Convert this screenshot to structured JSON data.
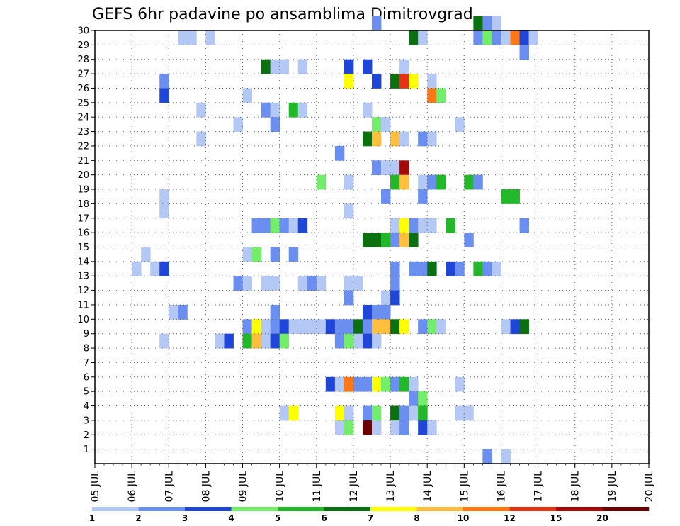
{
  "chart_data": {
    "type": "heatmap",
    "title": "GEFS 6hr padavine po ansamblima Dimitrovgrad",
    "xlabel": "",
    "ylabel": "",
    "x_ticks": [
      "05 JUL",
      "06 JUL",
      "07 JUL",
      "08 JUL",
      "09 JUL",
      "10 JUL",
      "11 JUL",
      "12 JUL",
      "13 JUL",
      "14 JUL",
      "15 JUL",
      "16 JUL",
      "17 JUL",
      "18 JUL",
      "19 JUL",
      "20 JUL"
    ],
    "x_range_days": [
      0,
      15
    ],
    "time_step_hours": 6,
    "y_ticks": [
      "1",
      "2",
      "3",
      "4",
      "5",
      "6",
      "7",
      "8",
      "9",
      "10",
      "11",
      "12",
      "13",
      "14",
      "15",
      "16",
      "17",
      "18",
      "19",
      "20",
      "21",
      "22",
      "23",
      "24",
      "25",
      "26",
      "27",
      "28",
      "29",
      "30"
    ],
    "y_range": [
      0,
      30
    ],
    "grid": true,
    "colorbar": {
      "labels": [
        "1",
        "2",
        "3",
        "4",
        "5",
        "6",
        "7",
        "8",
        "10",
        "12",
        "15",
        "20"
      ],
      "colors": [
        "#b4c8f5",
        "#6b8ff0",
        "#1f46d8",
        "#73ee6a",
        "#22b82a",
        "#0b7010",
        "#ffff00",
        "#ffbe3c",
        "#ff7814",
        "#e63214",
        "#a50a0a",
        "#6a0404"
      ]
    },
    "cells": [
      {
        "member": 30,
        "step": 41,
        "level": 6
      },
      {
        "member": 30,
        "step": 42,
        "level": 2
      },
      {
        "member": 30,
        "step": 43,
        "level": 1
      },
      {
        "member": 30,
        "step": 30,
        "level": 2
      },
      {
        "member": 29,
        "step": 9,
        "level": 1
      },
      {
        "member": 29,
        "step": 10,
        "level": 1
      },
      {
        "member": 29,
        "step": 12,
        "level": 1
      },
      {
        "member": 29,
        "step": 34,
        "level": 6
      },
      {
        "member": 29,
        "step": 35,
        "level": 1
      },
      {
        "member": 29,
        "step": 41,
        "level": 2
      },
      {
        "member": 29,
        "step": 42,
        "level": 4
      },
      {
        "member": 29,
        "step": 43,
        "level": 2
      },
      {
        "member": 29,
        "step": 44,
        "level": 1
      },
      {
        "member": 29,
        "step": 45,
        "level": 9
      },
      {
        "member": 29,
        "step": 46,
        "level": 3
      },
      {
        "member": 29,
        "step": 47,
        "level": 1
      },
      {
        "member": 28,
        "step": 46,
        "level": 2
      },
      {
        "member": 27,
        "step": 18,
        "level": 6
      },
      {
        "member": 27,
        "step": 19,
        "level": 1
      },
      {
        "member": 27,
        "step": 20,
        "level": 1
      },
      {
        "member": 27,
        "step": 22,
        "level": 1
      },
      {
        "member": 27,
        "step": 27,
        "level": 3
      },
      {
        "member": 27,
        "step": 29,
        "level": 3
      },
      {
        "member": 27,
        "step": 33,
        "level": 1
      },
      {
        "member": 26,
        "step": 7,
        "level": 2
      },
      {
        "member": 26,
        "step": 27,
        "level": 7
      },
      {
        "member": 26,
        "step": 30,
        "level": 3
      },
      {
        "member": 26,
        "step": 32,
        "level": 6
      },
      {
        "member": 26,
        "step": 33,
        "level": 10
      },
      {
        "member": 26,
        "step": 34,
        "level": 7
      },
      {
        "member": 26,
        "step": 36,
        "level": 1
      },
      {
        "member": 25,
        "step": 7,
        "level": 3
      },
      {
        "member": 25,
        "step": 16,
        "level": 1
      },
      {
        "member": 25,
        "step": 36,
        "level": 9
      },
      {
        "member": 25,
        "step": 37,
        "level": 4
      },
      {
        "member": 24,
        "step": 11,
        "level": 1
      },
      {
        "member": 24,
        "step": 18,
        "level": 2
      },
      {
        "member": 24,
        "step": 19,
        "level": 1
      },
      {
        "member": 24,
        "step": 21,
        "level": 5
      },
      {
        "member": 24,
        "step": 22,
        "level": 1
      },
      {
        "member": 24,
        "step": 29,
        "level": 1
      },
      {
        "member": 23,
        "step": 15,
        "level": 1
      },
      {
        "member": 23,
        "step": 19,
        "level": 2
      },
      {
        "member": 23,
        "step": 30,
        "level": 4
      },
      {
        "member": 23,
        "step": 31,
        "level": 1
      },
      {
        "member": 23,
        "step": 39,
        "level": 1
      },
      {
        "member": 22,
        "step": 11,
        "level": 1
      },
      {
        "member": 22,
        "step": 29,
        "level": 6
      },
      {
        "member": 22,
        "step": 30,
        "level": 8
      },
      {
        "member": 22,
        "step": 32,
        "level": 8
      },
      {
        "member": 22,
        "step": 33,
        "level": 1
      },
      {
        "member": 22,
        "step": 35,
        "level": 2
      },
      {
        "member": 22,
        "step": 36,
        "level": 1
      },
      {
        "member": 21,
        "step": 26,
        "level": 2
      },
      {
        "member": 20,
        "step": 30,
        "level": 2
      },
      {
        "member": 20,
        "step": 31,
        "level": 1
      },
      {
        "member": 20,
        "step": 32,
        "level": 1
      },
      {
        "member": 20,
        "step": 33,
        "level": 11
      },
      {
        "member": 19,
        "step": 24,
        "level": 4
      },
      {
        "member": 19,
        "step": 27,
        "level": 1
      },
      {
        "member": 19,
        "step": 32,
        "level": 5
      },
      {
        "member": 19,
        "step": 33,
        "level": 8
      },
      {
        "member": 19,
        "step": 35,
        "level": 1
      },
      {
        "member": 19,
        "step": 36,
        "level": 2
      },
      {
        "member": 19,
        "step": 37,
        "level": 5
      },
      {
        "member": 19,
        "step": 40,
        "level": 5
      },
      {
        "member": 19,
        "step": 41,
        "level": 2
      },
      {
        "member": 18,
        "step": 7,
        "level": 1
      },
      {
        "member": 18,
        "step": 31,
        "level": 2
      },
      {
        "member": 18,
        "step": 35,
        "level": 2
      },
      {
        "member": 18,
        "step": 44,
        "level": 5
      },
      {
        "member": 18,
        "step": 45,
        "level": 5
      },
      {
        "member": 17,
        "step": 7,
        "level": 1
      },
      {
        "member": 17,
        "step": 27,
        "level": 1
      },
      {
        "member": 16,
        "step": 17,
        "level": 2
      },
      {
        "member": 16,
        "step": 18,
        "level": 2
      },
      {
        "member": 16,
        "step": 19,
        "level": 4
      },
      {
        "member": 16,
        "step": 20,
        "level": 2
      },
      {
        "member": 16,
        "step": 21,
        "level": 1
      },
      {
        "member": 16,
        "step": 22,
        "level": 3
      },
      {
        "member": 16,
        "step": 32,
        "level": 1
      },
      {
        "member": 16,
        "step": 33,
        "level": 7
      },
      {
        "member": 16,
        "step": 34,
        "level": 2
      },
      {
        "member": 16,
        "step": 35,
        "level": 1
      },
      {
        "member": 16,
        "step": 36,
        "level": 1
      },
      {
        "member": 16,
        "step": 38,
        "level": 5
      },
      {
        "member": 16,
        "step": 46,
        "level": 2
      },
      {
        "member": 15,
        "step": 29,
        "level": 6
      },
      {
        "member": 15,
        "step": 30,
        "level": 6
      },
      {
        "member": 15,
        "step": 31,
        "level": 5
      },
      {
        "member": 15,
        "step": 32,
        "level": 2
      },
      {
        "member": 15,
        "step": 33,
        "level": 8
      },
      {
        "member": 15,
        "step": 34,
        "level": 6
      },
      {
        "member": 15,
        "step": 40,
        "level": 2
      },
      {
        "member": 14,
        "step": 5,
        "level": 1
      },
      {
        "member": 14,
        "step": 16,
        "level": 1
      },
      {
        "member": 14,
        "step": 17,
        "level": 4
      },
      {
        "member": 14,
        "step": 19,
        "level": 2
      },
      {
        "member": 14,
        "step": 21,
        "level": 2
      },
      {
        "member": 13,
        "step": 4,
        "level": 1
      },
      {
        "member": 13,
        "step": 6,
        "level": 1
      },
      {
        "member": 13,
        "step": 7,
        "level": 3
      },
      {
        "member": 13,
        "step": 32,
        "level": 2
      },
      {
        "member": 13,
        "step": 34,
        "level": 2
      },
      {
        "member": 13,
        "step": 35,
        "level": 2
      },
      {
        "member": 13,
        "step": 36,
        "level": 6
      },
      {
        "member": 13,
        "step": 38,
        "level": 3
      },
      {
        "member": 13,
        "step": 39,
        "level": 2
      },
      {
        "member": 13,
        "step": 41,
        "level": 5
      },
      {
        "member": 13,
        "step": 42,
        "level": 2
      },
      {
        "member": 13,
        "step": 43,
        "level": 1
      },
      {
        "member": 12,
        "step": 15,
        "level": 2
      },
      {
        "member": 12,
        "step": 16,
        "level": 1
      },
      {
        "member": 12,
        "step": 18,
        "level": 1
      },
      {
        "member": 12,
        "step": 19,
        "level": 1
      },
      {
        "member": 12,
        "step": 22,
        "level": 1
      },
      {
        "member": 12,
        "step": 23,
        "level": 2
      },
      {
        "member": 12,
        "step": 24,
        "level": 1
      },
      {
        "member": 12,
        "step": 27,
        "level": 1
      },
      {
        "member": 12,
        "step": 28,
        "level": 1
      },
      {
        "member": 12,
        "step": 32,
        "level": 2
      },
      {
        "member": 11,
        "step": 27,
        "level": 2
      },
      {
        "member": 11,
        "step": 31,
        "level": 1
      },
      {
        "member": 11,
        "step": 32,
        "level": 3
      },
      {
        "member": 10,
        "step": 8,
        "level": 1
      },
      {
        "member": 10,
        "step": 9,
        "level": 2
      },
      {
        "member": 10,
        "step": 19,
        "level": 2
      },
      {
        "member": 10,
        "step": 29,
        "level": 3
      },
      {
        "member": 10,
        "step": 30,
        "level": 2
      },
      {
        "member": 10,
        "step": 31,
        "level": 2
      },
      {
        "member": 9,
        "step": 16,
        "level": 2
      },
      {
        "member": 9,
        "step": 17,
        "level": 7
      },
      {
        "member": 9,
        "step": 18,
        "level": 1
      },
      {
        "member": 9,
        "step": 19,
        "level": 2
      },
      {
        "member": 9,
        "step": 20,
        "level": 3
      },
      {
        "member": 9,
        "step": 21,
        "level": 1
      },
      {
        "member": 9,
        "step": 22,
        "level": 1
      },
      {
        "member": 9,
        "step": 23,
        "level": 1
      },
      {
        "member": 9,
        "step": 24,
        "level": 1
      },
      {
        "member": 9,
        "step": 25,
        "level": 3
      },
      {
        "member": 9,
        "step": 26,
        "level": 2
      },
      {
        "member": 9,
        "step": 27,
        "level": 2
      },
      {
        "member": 9,
        "step": 28,
        "level": 6
      },
      {
        "member": 9,
        "step": 29,
        "level": 2
      },
      {
        "member": 9,
        "step": 30,
        "level": 8
      },
      {
        "member": 9,
        "step": 31,
        "level": 8
      },
      {
        "member": 9,
        "step": 32,
        "level": 6
      },
      {
        "member": 9,
        "step": 33,
        "level": 7
      },
      {
        "member": 9,
        "step": 35,
        "level": 2
      },
      {
        "member": 9,
        "step": 36,
        "level": 4
      },
      {
        "member": 9,
        "step": 37,
        "level": 1
      },
      {
        "member": 9,
        "step": 44,
        "level": 1
      },
      {
        "member": 9,
        "step": 45,
        "level": 3
      },
      {
        "member": 9,
        "step": 46,
        "level": 6
      },
      {
        "member": 8,
        "step": 7,
        "level": 1
      },
      {
        "member": 8,
        "step": 13,
        "level": 1
      },
      {
        "member": 8,
        "step": 14,
        "level": 3
      },
      {
        "member": 8,
        "step": 16,
        "level": 5
      },
      {
        "member": 8,
        "step": 17,
        "level": 8
      },
      {
        "member": 8,
        "step": 18,
        "level": 1
      },
      {
        "member": 8,
        "step": 19,
        "level": 3
      },
      {
        "member": 8,
        "step": 20,
        "level": 4
      },
      {
        "member": 8,
        "step": 26,
        "level": 2
      },
      {
        "member": 8,
        "step": 27,
        "level": 4
      },
      {
        "member": 8,
        "step": 28,
        "level": 1
      },
      {
        "member": 8,
        "step": 29,
        "level": 3
      },
      {
        "member": 8,
        "step": 30,
        "level": 1
      },
      {
        "member": 5,
        "step": 25,
        "level": 3
      },
      {
        "member": 5,
        "step": 26,
        "level": 1
      },
      {
        "member": 5,
        "step": 27,
        "level": 9
      },
      {
        "member": 5,
        "step": 28,
        "level": 2
      },
      {
        "member": 5,
        "step": 29,
        "level": 2
      },
      {
        "member": 5,
        "step": 30,
        "level": 7
      },
      {
        "member": 5,
        "step": 31,
        "level": 4
      },
      {
        "member": 5,
        "step": 32,
        "level": 2
      },
      {
        "member": 5,
        "step": 33,
        "level": 5
      },
      {
        "member": 5,
        "step": 34,
        "level": 1
      },
      {
        "member": 5,
        "step": 39,
        "level": 1
      },
      {
        "member": 4,
        "step": 34,
        "level": 2
      },
      {
        "member": 4,
        "step": 35,
        "level": 4
      },
      {
        "member": 3,
        "step": 20,
        "level": 1
      },
      {
        "member": 3,
        "step": 21,
        "level": 7
      },
      {
        "member": 3,
        "step": 26,
        "level": 7
      },
      {
        "member": 3,
        "step": 27,
        "level": 1
      },
      {
        "member": 3,
        "step": 29,
        "level": 2
      },
      {
        "member": 3,
        "step": 30,
        "level": 4
      },
      {
        "member": 3,
        "step": 32,
        "level": 6
      },
      {
        "member": 3,
        "step": 33,
        "level": 2
      },
      {
        "member": 3,
        "step": 34,
        "level": 1
      },
      {
        "member": 3,
        "step": 35,
        "level": 5
      },
      {
        "member": 3,
        "step": 39,
        "level": 1
      },
      {
        "member": 3,
        "step": 40,
        "level": 1
      },
      {
        "member": 2,
        "step": 26,
        "level": 1
      },
      {
        "member": 2,
        "step": 27,
        "level": 4
      },
      {
        "member": 2,
        "step": 29,
        "level": 12
      },
      {
        "member": 2,
        "step": 30,
        "level": 1
      },
      {
        "member": 2,
        "step": 32,
        "level": 1
      },
      {
        "member": 2,
        "step": 33,
        "level": 2
      },
      {
        "member": 2,
        "step": 35,
        "level": 3
      },
      {
        "member": 2,
        "step": 36,
        "level": 1
      },
      {
        "member": 0,
        "step": 42,
        "level": 2
      },
      {
        "member": 0,
        "step": 44,
        "level": 1
      }
    ]
  }
}
